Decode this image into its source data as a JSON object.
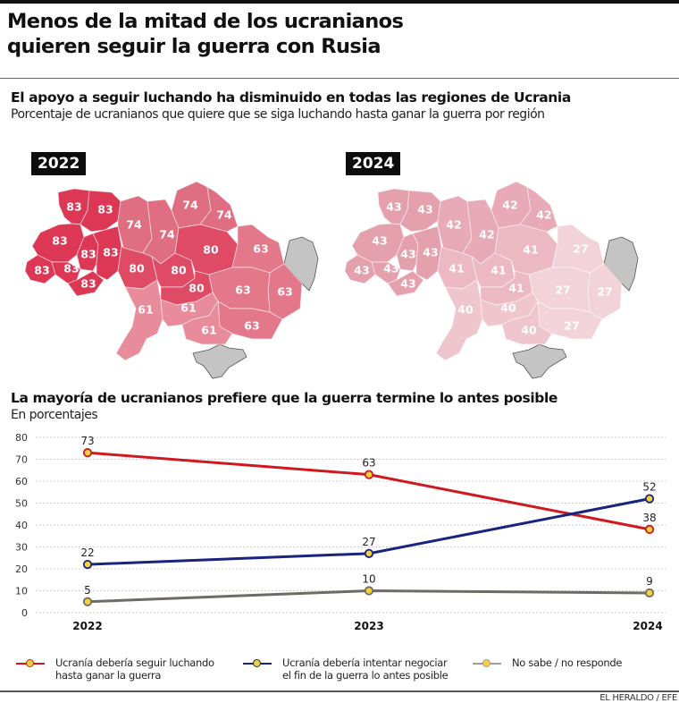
{
  "header": {
    "title_line1": "Menos de la mitad de los ucranianos",
    "title_line2": "quieren seguir la guerra con Rusia"
  },
  "maps_section": {
    "title": "El apoyo a seguir luchando ha disminuido en todas las regiones de Ucrania",
    "subtitle": "Porcentaje de ucranianos que quiere que se siga luchando hasta ganar la guerra por región",
    "colors": {
      "occupied": "#c4c4c4",
      "scale": {
        "83": "#dc3755",
        "80": "#df4a65",
        "74": "#e06e82",
        "63": "#e4788b",
        "61": "#e88c9b",
        "43": "#e5a0ae",
        "42": "#e8aab6",
        "41": "#ecb9c3",
        "40": "#efc6ce",
        "27": "#f2d3d9"
      }
    },
    "maps": [
      {
        "year": "2022",
        "regions": [
          {
            "name": "volyn",
            "value": 83
          },
          {
            "name": "rivne",
            "value": 83
          },
          {
            "name": "lviv",
            "value": 83
          },
          {
            "name": "ternopil",
            "value": 83
          },
          {
            "name": "khmelnytskyi",
            "value": 83
          },
          {
            "name": "zakarpattia",
            "value": 83
          },
          {
            "name": "ivano-frankivsk",
            "value": 83
          },
          {
            "name": "chernivtsi",
            "value": 83
          },
          {
            "name": "zhytomyr",
            "value": 74
          },
          {
            "name": "kyiv",
            "value": 74
          },
          {
            "name": "chernihiv",
            "value": 74
          },
          {
            "name": "sumy",
            "value": 74
          },
          {
            "name": "vinnytsia",
            "value": 80
          },
          {
            "name": "cherkasy",
            "value": 80
          },
          {
            "name": "poltava",
            "value": 80
          },
          {
            "name": "kirovohrad",
            "value": 80
          },
          {
            "name": "kharkiv",
            "value": 63
          },
          {
            "name": "donetsk",
            "value": 63
          },
          {
            "name": "dnipro",
            "value": 63
          },
          {
            "name": "zaporizhzhia",
            "value": 63
          },
          {
            "name": "odesa",
            "value": 61
          },
          {
            "name": "mykolaiv",
            "value": 61
          },
          {
            "name": "kherson",
            "value": 61
          }
        ]
      },
      {
        "year": "2024",
        "regions": [
          {
            "name": "volyn",
            "value": 43
          },
          {
            "name": "rivne",
            "value": 43
          },
          {
            "name": "lviv",
            "value": 43
          },
          {
            "name": "ternopil",
            "value": 43
          },
          {
            "name": "khmelnytskyi",
            "value": 43
          },
          {
            "name": "zakarpattia",
            "value": 43
          },
          {
            "name": "ivano-frankivsk",
            "value": 43
          },
          {
            "name": "chernivtsi",
            "value": 43
          },
          {
            "name": "zhytomyr",
            "value": 42
          },
          {
            "name": "kyiv",
            "value": 42
          },
          {
            "name": "chernihiv",
            "value": 42
          },
          {
            "name": "sumy",
            "value": 42
          },
          {
            "name": "vinnytsia",
            "value": 41
          },
          {
            "name": "cherkasy",
            "value": 41
          },
          {
            "name": "poltava",
            "value": 41
          },
          {
            "name": "kirovohrad",
            "value": 41
          },
          {
            "name": "kharkiv",
            "value": 27
          },
          {
            "name": "donetsk",
            "value": 27
          },
          {
            "name": "dnipro",
            "value": 27
          },
          {
            "name": "zaporizhzhia",
            "value": 27
          },
          {
            "name": "odesa",
            "value": 40
          },
          {
            "name": "mykolaiv",
            "value": 40
          },
          {
            "name": "kherson",
            "value": 40
          }
        ]
      }
    ]
  },
  "line_section": {
    "title": "La mayoría de ucranianos prefiere que la guerra termine lo antes posible",
    "subtitle": "En porcentajes"
  },
  "chart_data": {
    "type": "line",
    "title": "La mayoría de ucranianos prefiere que la guerra termine lo antes posible",
    "subtitle": "En porcentajes",
    "x": [
      "2022",
      "2023",
      "2024"
    ],
    "ylim": [
      0,
      80
    ],
    "yticks": [
      0,
      10,
      20,
      30,
      40,
      50,
      60,
      70,
      80
    ],
    "grid": true,
    "legend_position": "bottom",
    "series": [
      {
        "name": "Ucranía debería seguir luchando hasta ganar la guerra",
        "values": [
          73,
          63,
          38
        ],
        "color": "#d0191f"
      },
      {
        "name": "Ucranía debería intentar negociar el fin de la guerra lo antes posible",
        "values": [
          22,
          27,
          52
        ],
        "color": "#1a237e"
      },
      {
        "name": "No sabe / no responde",
        "values": [
          5,
          10,
          9
        ],
        "color": "#6e6a66"
      }
    ],
    "marker_fill": "#f3d33a"
  },
  "legend": [
    {
      "line1": "Ucranía debería seguir luchando",
      "line2": "hasta ganar la guerra"
    },
    {
      "line1": "Ucranía debería intentar negociar",
      "line2": "el fin de la guerra lo antes posible"
    },
    {
      "line1": "No sabe / no responde",
      "line2": ""
    }
  ],
  "footer": {
    "credit": "EL HERALDO / EFE"
  }
}
